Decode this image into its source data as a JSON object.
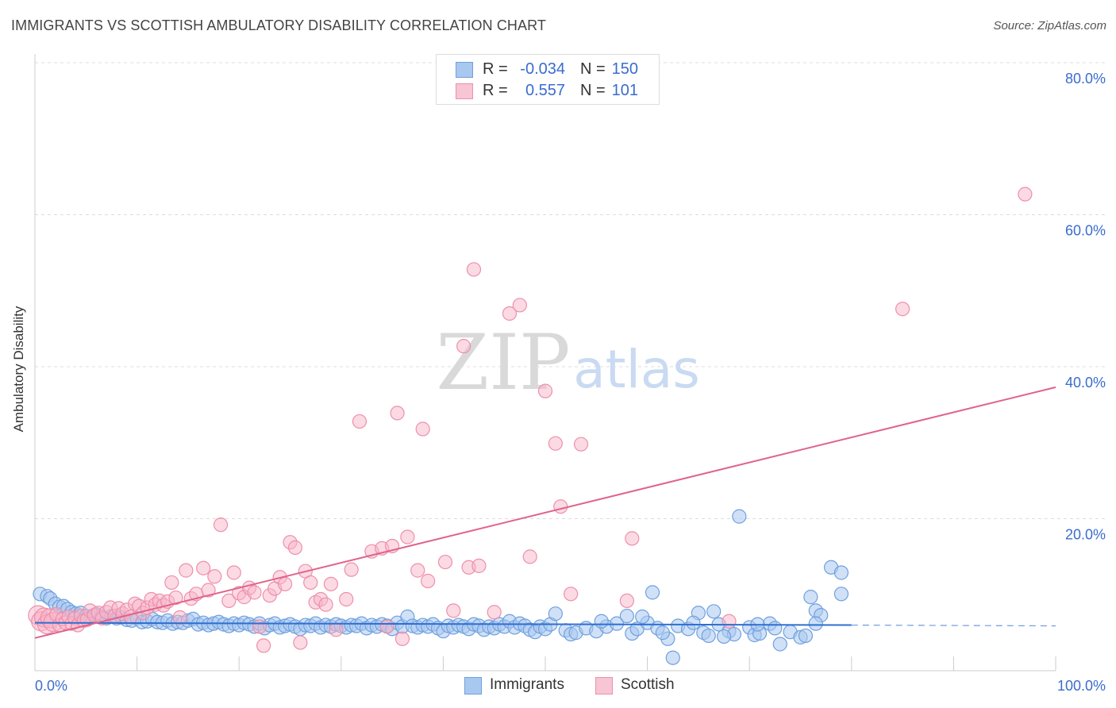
{
  "title": "IMMIGRANTS VS SCOTTISH AMBULATORY DISABILITY CORRELATION CHART",
  "source": "Source: ZipAtlas.com",
  "watermark": {
    "zip": "ZIP",
    "atlas": "atlas"
  },
  "legend_top": {
    "rows": [
      {
        "r_label": "R =",
        "r_value": "-0.034",
        "n_label": "N =",
        "n_value": "150"
      },
      {
        "r_label": "R =",
        "r_value": "0.557",
        "n_label": "N =",
        "n_value": "101"
      }
    ]
  },
  "bottom_legend": {
    "items": [
      {
        "label": "Immigrants"
      },
      {
        "label": "Scottish"
      }
    ]
  },
  "colors": {
    "blue_fill": "#a9c8f0",
    "blue_stroke": "#6fa0de",
    "blue_line": "#2f6fd0",
    "pink_fill": "#f7b5c9",
    "pink_stroke": "#ee8fab",
    "pink_line": "#e0638c",
    "grid": "#dddddd",
    "axis_text": "#3a6ccf"
  },
  "chart_data": {
    "type": "scatter",
    "title": "IMMIGRANTS VS SCOTTISH AMBULATORY DISABILITY CORRELATION CHART",
    "xlabel": "",
    "ylabel": "Ambulatory Disability",
    "xlim": [
      0,
      100
    ],
    "ylim": [
      0,
      80
    ],
    "x_tick_labels": [
      "0.0%",
      "100.0%"
    ],
    "y_ticks": [
      20,
      40,
      60,
      80
    ],
    "y_tick_labels": [
      "20.0%",
      "40.0%",
      "60.0%",
      "80.0%"
    ],
    "grid": true,
    "legend_position": "top-center",
    "series": [
      {
        "name": "Immigrants",
        "color": "#a9c8f0",
        "r": -0.034,
        "n": 150,
        "trend": {
          "x": [
            0,
            80
          ],
          "y": [
            6.3,
            6.0
          ],
          "dashed_extension": {
            "x": [
              80,
              100
            ],
            "y": [
              6.0,
              5.9
            ]
          }
        },
        "points": [
          [
            0.5,
            10.1
          ],
          [
            1.2,
            9.8
          ],
          [
            1.5,
            9.5
          ],
          [
            2,
            8.8
          ],
          [
            2.4,
            8.4
          ],
          [
            2.8,
            8.5
          ],
          [
            3.2,
            8.1
          ],
          [
            3.6,
            7.7
          ],
          [
            4,
            7.5
          ],
          [
            4.5,
            7.6
          ],
          [
            5,
            7.2
          ],
          [
            5.5,
            7.0
          ],
          [
            6,
            7.4
          ],
          [
            6.5,
            7.1
          ],
          [
            7,
            6.9
          ],
          [
            7.5,
            7.2
          ],
          [
            8,
            6.9
          ],
          [
            8.5,
            7.0
          ],
          [
            9,
            6.7
          ],
          [
            9.5,
            6.6
          ],
          [
            10,
            6.9
          ],
          [
            10.5,
            6.4
          ],
          [
            11,
            6.5
          ],
          [
            11.5,
            6.8
          ],
          [
            12,
            6.4
          ],
          [
            12.5,
            6.3
          ],
          [
            13,
            6.6
          ],
          [
            13.5,
            6.2
          ],
          [
            14,
            6.4
          ],
          [
            14.5,
            6.3
          ],
          [
            15,
            6.6
          ],
          [
            15.5,
            6.8
          ],
          [
            16,
            6.1
          ],
          [
            16.5,
            6.3
          ],
          [
            17,
            6.0
          ],
          [
            17.5,
            6.2
          ],
          [
            18,
            6.4
          ],
          [
            18.5,
            6.1
          ],
          [
            19,
            5.9
          ],
          [
            19.5,
            6.2
          ],
          [
            20,
            6.0
          ],
          [
            20.5,
            6.3
          ],
          [
            21,
            6.1
          ],
          [
            21.5,
            5.8
          ],
          [
            22,
            6.2
          ],
          [
            22.5,
            5.6
          ],
          [
            23,
            6.0
          ],
          [
            23.5,
            6.2
          ],
          [
            24,
            5.7
          ],
          [
            24.5,
            5.9
          ],
          [
            25,
            6.1
          ],
          [
            25.5,
            5.8
          ],
          [
            26,
            5.5
          ],
          [
            26.5,
            6.0
          ],
          [
            27,
            5.9
          ],
          [
            27.5,
            6.2
          ],
          [
            28,
            5.7
          ],
          [
            28.5,
            6.0
          ],
          [
            29,
            5.8
          ],
          [
            29.5,
            6.1
          ],
          [
            30,
            5.9
          ],
          [
            30.5,
            5.7
          ],
          [
            31,
            6.0
          ],
          [
            31.5,
            5.9
          ],
          [
            32,
            6.2
          ],
          [
            32.5,
            5.6
          ],
          [
            33,
            6.0
          ],
          [
            33.5,
            5.8
          ],
          [
            34,
            6.1
          ],
          [
            34.5,
            5.9
          ],
          [
            35,
            5.5
          ],
          [
            35.5,
            6.3
          ],
          [
            36,
            5.8
          ],
          [
            36.5,
            7.1
          ],
          [
            37,
            5.9
          ],
          [
            37.5,
            5.7
          ],
          [
            38,
            6.0
          ],
          [
            38.5,
            5.8
          ],
          [
            39,
            6.1
          ],
          [
            39.5,
            5.6
          ],
          [
            40,
            5.2
          ],
          [
            40.5,
            5.9
          ],
          [
            41,
            5.7
          ],
          [
            41.5,
            6.0
          ],
          [
            42,
            5.8
          ],
          [
            42.5,
            5.5
          ],
          [
            43,
            6.1
          ],
          [
            43.5,
            5.9
          ],
          [
            44,
            5.4
          ],
          [
            44.5,
            5.8
          ],
          [
            45,
            5.6
          ],
          [
            45.5,
            6.1
          ],
          [
            46,
            5.8
          ],
          [
            46.5,
            6.5
          ],
          [
            47,
            5.7
          ],
          [
            47.5,
            6.2
          ],
          [
            48,
            5.9
          ],
          [
            48.5,
            5.4
          ],
          [
            49,
            5.1
          ],
          [
            49.5,
            5.8
          ],
          [
            50,
            5.5
          ],
          [
            50.5,
            6.1
          ],
          [
            51,
            7.5
          ],
          [
            52,
            5.3
          ],
          [
            52.5,
            4.8
          ],
          [
            53,
            5.0
          ],
          [
            54,
            5.6
          ],
          [
            55,
            5.2
          ],
          [
            56,
            5.8
          ],
          [
            57,
            6.2
          ],
          [
            58,
            7.2
          ],
          [
            58.5,
            4.9
          ],
          [
            59,
            5.5
          ],
          [
            60,
            6.3
          ],
          [
            60.5,
            10.3
          ],
          [
            61,
            5.6
          ],
          [
            62,
            4.2
          ],
          [
            62.5,
            1.7
          ],
          [
            63,
            5.9
          ],
          [
            64,
            5.5
          ],
          [
            65,
            7.6
          ],
          [
            65.5,
            5.0
          ],
          [
            66,
            4.6
          ],
          [
            67,
            6.1
          ],
          [
            68,
            5.2
          ],
          [
            68.5,
            4.8
          ],
          [
            69,
            20.3
          ],
          [
            70,
            5.7
          ],
          [
            70.5,
            4.7
          ],
          [
            71,
            4.9
          ],
          [
            72,
            6.2
          ],
          [
            73,
            3.5
          ],
          [
            74,
            5.1
          ],
          [
            75,
            4.4
          ],
          [
            76,
            9.7
          ],
          [
            76.5,
            7.9
          ],
          [
            77,
            7.3
          ],
          [
            78,
            13.6
          ],
          [
            79,
            12.9
          ],
          [
            79,
            10.1
          ],
          [
            76.5,
            6.2
          ],
          [
            75.5,
            4.6
          ],
          [
            72.5,
            5.6
          ],
          [
            70.8,
            6.1
          ],
          [
            67.5,
            4.5
          ],
          [
            66.5,
            7.8
          ],
          [
            64.5,
            6.3
          ],
          [
            61.5,
            5.0
          ],
          [
            59.5,
            7.1
          ],
          [
            55.5,
            6.5
          ]
        ]
      },
      {
        "name": "Scottish",
        "color": "#f7b5c9",
        "r": 0.557,
        "n": 101,
        "trend": {
          "x": [
            0,
            100
          ],
          "y": [
            4.3,
            37.3
          ]
        },
        "points": [
          [
            0.3,
            7.3
          ],
          [
            0.6,
            6.5
          ],
          [
            0.9,
            7.0
          ],
          [
            1.2,
            6.1
          ],
          [
            1.5,
            6.9
          ],
          [
            1.8,
            6.4
          ],
          [
            2.1,
            7.4
          ],
          [
            2.4,
            6.0
          ],
          [
            2.7,
            6.8
          ],
          [
            3,
            6.3
          ],
          [
            3.3,
            7.1
          ],
          [
            3.6,
            6.2
          ],
          [
            3.9,
            6.9
          ],
          [
            4.2,
            6.0
          ],
          [
            4.5,
            7.2
          ],
          [
            4.8,
            6.6
          ],
          [
            5.1,
            6.7
          ],
          [
            5.4,
            7.9
          ],
          [
            5.8,
            7.3
          ],
          [
            6.2,
            7.6
          ],
          [
            6.6,
            6.9
          ],
          [
            7,
            7.7
          ],
          [
            7.4,
            8.3
          ],
          [
            7.8,
            7.2
          ],
          [
            8.2,
            8.2
          ],
          [
            8.6,
            7.5
          ],
          [
            9,
            8.0
          ],
          [
            9.4,
            7.1
          ],
          [
            9.8,
            8.8
          ],
          [
            10.2,
            8.5
          ],
          [
            10.6,
            7.6
          ],
          [
            11,
            8.3
          ],
          [
            11.4,
            9.4
          ],
          [
            11.8,
            8.7
          ],
          [
            12.2,
            9.2
          ],
          [
            12.6,
            8.6
          ],
          [
            13,
            9.1
          ],
          [
            13.4,
            11.6
          ],
          [
            13.8,
            9.6
          ],
          [
            14.2,
            7.0
          ],
          [
            14.8,
            13.2
          ],
          [
            15.3,
            9.5
          ],
          [
            15.8,
            10.1
          ],
          [
            16.5,
            13.5
          ],
          [
            17,
            10.6
          ],
          [
            17.6,
            12.4
          ],
          [
            18.2,
            19.2
          ],
          [
            19,
            9.2
          ],
          [
            19.5,
            12.9
          ],
          [
            20,
            10.2
          ],
          [
            20.5,
            9.7
          ],
          [
            21,
            10.9
          ],
          [
            21.5,
            10.3
          ],
          [
            22,
            5.8
          ],
          [
            22.4,
            3.3
          ],
          [
            23,
            9.9
          ],
          [
            23.5,
            10.8
          ],
          [
            24,
            12.3
          ],
          [
            24.5,
            11.4
          ],
          [
            25,
            16.9
          ],
          [
            25.5,
            16.2
          ],
          [
            26,
            3.7
          ],
          [
            26.5,
            13.1
          ],
          [
            27,
            11.6
          ],
          [
            27.5,
            9.0
          ],
          [
            28,
            9.4
          ],
          [
            28.5,
            8.7
          ],
          [
            29,
            11.4
          ],
          [
            29.5,
            5.4
          ],
          [
            30.5,
            9.4
          ],
          [
            31,
            13.3
          ],
          [
            31.8,
            32.8
          ],
          [
            33,
            15.7
          ],
          [
            34,
            16.1
          ],
          [
            34.5,
            5.8
          ],
          [
            35,
            16.4
          ],
          [
            35.5,
            33.9
          ],
          [
            36,
            4.2
          ],
          [
            36.5,
            17.6
          ],
          [
            37.5,
            13.2
          ],
          [
            38,
            31.8
          ],
          [
            38.5,
            11.8
          ],
          [
            40.2,
            14.3
          ],
          [
            41,
            7.9
          ],
          [
            42,
            42.7
          ],
          [
            42.5,
            13.6
          ],
          [
            43,
            52.8
          ],
          [
            43.5,
            13.8
          ],
          [
            45,
            7.7
          ],
          [
            46.5,
            47.0
          ],
          [
            47.5,
            48.1
          ],
          [
            48.5,
            15.0
          ],
          [
            50,
            36.8
          ],
          [
            51,
            29.9
          ],
          [
            51.5,
            21.6
          ],
          [
            52.5,
            10.1
          ],
          [
            53.5,
            29.8
          ],
          [
            58,
            9.2
          ],
          [
            58.5,
            17.4
          ],
          [
            68,
            6.5
          ],
          [
            85,
            47.6
          ],
          [
            97,
            62.7
          ]
        ]
      }
    ]
  }
}
